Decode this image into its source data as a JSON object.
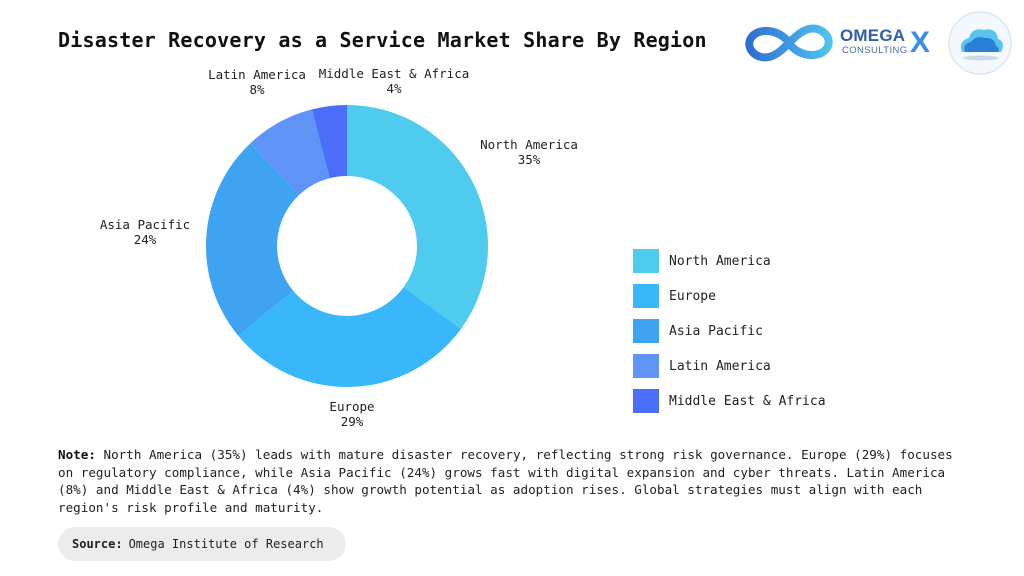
{
  "title": "Disaster Recovery as a Service Market Share By Region",
  "brand": {
    "name": "OMEGA",
    "sub": "CONSULTING",
    "separator": "X"
  },
  "icons": [
    "omega-infinity-logo",
    "cloud-logo"
  ],
  "colors": {
    "accent": "#3a8ee8",
    "title": "#111111"
  },
  "chart_data": {
    "type": "pie",
    "donut": true,
    "categories": [
      "North America",
      "Europe",
      "Asia Pacific",
      "Latin America",
      "Middle East & Africa"
    ],
    "values": [
      35,
      29,
      24,
      8,
      4
    ],
    "labels": [
      "35%",
      "29%",
      "24%",
      "8%",
      "4%"
    ],
    "colors": [
      "#4ecbef",
      "#38b8fa",
      "#3ea3f2",
      "#5f93f5",
      "#4b6ef9"
    ],
    "legend_position": "right"
  },
  "note": {
    "label": "Note:",
    "text": "North America (35%) leads with mature disaster recovery, reflecting strong risk governance. Europe (29%) focuses on regulatory compliance, while Asia Pacific (24%) grows fast with digital expansion and cyber threats. Latin America (8%) and Middle East & Africa (4%) show growth potential as adoption rises. Global strategies must align with each region's risk profile and maturity."
  },
  "source": {
    "label": "Source:",
    "text": "Omega Institute of Research"
  }
}
